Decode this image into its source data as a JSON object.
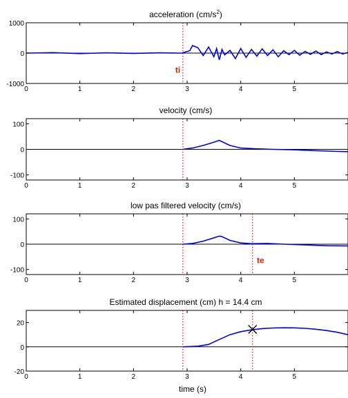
{
  "chart_data": [
    {
      "type": "line",
      "title": "acceleration (cm/s",
      "title_sup": "2",
      "title_tail": ")",
      "xlim": [
        0,
        6
      ],
      "ylim": [
        -1000,
        1000
      ],
      "xticks": [
        "0",
        "1",
        "2",
        "3",
        "4",
        "5"
      ],
      "yticks": [
        "1000",
        "0",
        "-1000"
      ],
      "marker_lines": [
        {
          "x": 2.92,
          "label": "ti",
          "label_x": 2.78,
          "label_y": -650
        }
      ],
      "series": [
        {
          "color": "#0000dd",
          "x": [
            0,
            0.5,
            1,
            1.5,
            2,
            2.5,
            2.9,
            3.05,
            3.1,
            3.2,
            3.3,
            3.4,
            3.5,
            3.55,
            3.6,
            3.65,
            3.7,
            3.8,
            3.9,
            4.0,
            4.1,
            4.2,
            4.3,
            4.4,
            4.5,
            4.6,
            4.7,
            4.8,
            4.9,
            5.0,
            5.1,
            5.2,
            5.3,
            5.4,
            5.5,
            5.6,
            5.7,
            5.8,
            5.9,
            6.0
          ],
          "y": [
            0,
            15,
            -15,
            10,
            -10,
            10,
            0,
            80,
            250,
            180,
            -80,
            200,
            -120,
            150,
            -220,
            120,
            -60,
            90,
            -180,
            150,
            -140,
            120,
            -100,
            140,
            -80,
            110,
            -120,
            80,
            -50,
            90,
            -70,
            60,
            -40,
            70,
            -50,
            40,
            -30,
            50,
            -30,
            20
          ]
        }
      ]
    },
    {
      "type": "line",
      "title": "velocity (cm/s)",
      "xlim": [
        0,
        6
      ],
      "ylim": [
        -120,
        120
      ],
      "xticks": [
        "0",
        "1",
        "2",
        "3",
        "4",
        "5"
      ],
      "yticks": [
        "100",
        "0",
        "-100"
      ],
      "marker_lines": [
        {
          "x": 2.92
        }
      ],
      "series": [
        {
          "color": "#0000dd",
          "x": [
            2.92,
            3.1,
            3.3,
            3.5,
            3.6,
            3.65,
            3.8,
            4.0,
            4.3,
            4.6,
            5.0,
            5.4,
            5.8,
            6.0
          ],
          "y": [
            0,
            5,
            15,
            28,
            35,
            30,
            15,
            5,
            2,
            0,
            -2,
            -5,
            -8,
            -9
          ]
        }
      ]
    },
    {
      "type": "line",
      "title": "low pas filtered velocity (cm/s)",
      "xlim": [
        0,
        6
      ],
      "ylim": [
        -120,
        120
      ],
      "xticks": [
        "0",
        "1",
        "2",
        "3",
        "4",
        "5"
      ],
      "yticks": [
        "100",
        "0",
        "-100"
      ],
      "marker_lines": [
        {
          "x": 2.92
        },
        {
          "x": 4.22,
          "label": "te",
          "label_x": 4.3,
          "label_y": -75
        }
      ],
      "series": [
        {
          "color": "#0000dd",
          "x": [
            2.92,
            3.1,
            3.3,
            3.5,
            3.6,
            3.65,
            3.8,
            4.0,
            4.2,
            4.5,
            4.8,
            5.2,
            5.6,
            6.0
          ],
          "y": [
            0,
            3,
            12,
            25,
            32,
            30,
            15,
            5,
            2,
            3,
            0,
            -3,
            -6,
            -7
          ]
        }
      ]
    },
    {
      "type": "line",
      "title": "Estimated displacement (cm)     h = 14.4 cm",
      "xlabel": "time (s)",
      "xlim": [
        0,
        6
      ],
      "ylim": [
        -20,
        30
      ],
      "xticks": [
        "0",
        "1",
        "2",
        "3",
        "4",
        "5"
      ],
      "yticks": [
        "20",
        "0",
        "-20"
      ],
      "marker_lines": [
        {
          "x": 2.92
        },
        {
          "x": 4.22
        }
      ],
      "cross": {
        "x": 4.22,
        "y": 14.4
      },
      "series": [
        {
          "color": "#0000dd",
          "x": [
            2.92,
            3.2,
            3.4,
            3.6,
            3.8,
            4.0,
            4.2,
            4.4,
            4.6,
            4.8,
            5.0,
            5.2,
            5.4,
            5.6,
            5.8,
            6.0
          ],
          "y": [
            0,
            0.5,
            2,
            6,
            10,
            12.5,
            14,
            15,
            15.5,
            15.7,
            15.6,
            15.2,
            14.5,
            13.4,
            12,
            10
          ]
        }
      ]
    }
  ]
}
